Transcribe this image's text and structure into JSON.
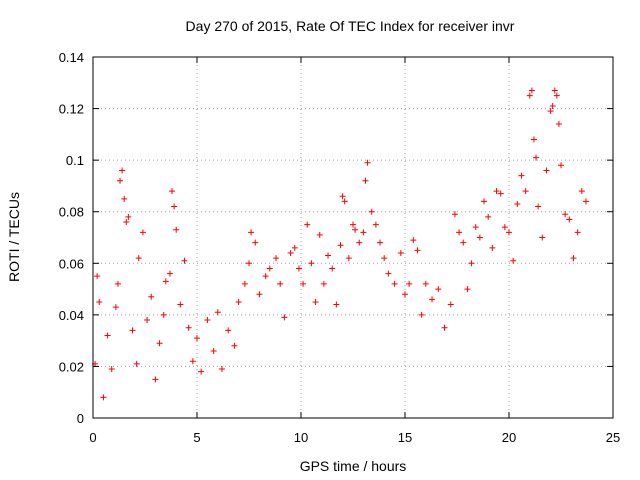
{
  "chart_data": {
    "type": "scatter",
    "title": "Day 270 of 2015, Rate Of TEC Index for receiver invr",
    "xlabel": "GPS time / hours",
    "ylabel": "ROTI / TECUs",
    "xlim": [
      0,
      25
    ],
    "ylim": [
      0,
      0.14
    ],
    "xticks": [
      0,
      5,
      10,
      15,
      20,
      25
    ],
    "xtick_labels": [
      "0",
      "5",
      "10",
      "15",
      "20",
      "25"
    ],
    "yticks": [
      0,
      0.02,
      0.04,
      0.06,
      0.08,
      0.1,
      0.12,
      0.14
    ],
    "ytick_labels": [
      "0",
      "0.02",
      "0.04",
      "0.06",
      "0.08",
      "0.1",
      "0.12",
      "0.14"
    ],
    "grid": true,
    "marker": "plus",
    "series": [
      {
        "name": "ROTI",
        "color": "#ff0000",
        "points": [
          [
            0.1,
            0.021
          ],
          [
            0.2,
            0.055
          ],
          [
            0.3,
            0.045
          ],
          [
            0.5,
            0.008
          ],
          [
            0.7,
            0.032
          ],
          [
            0.9,
            0.019
          ],
          [
            1.1,
            0.043
          ],
          [
            1.2,
            0.052
          ],
          [
            1.3,
            0.092
          ],
          [
            1.4,
            0.096
          ],
          [
            1.5,
            0.085
          ],
          [
            1.6,
            0.076
          ],
          [
            1.7,
            0.078
          ],
          [
            1.9,
            0.034
          ],
          [
            2.1,
            0.021
          ],
          [
            2.2,
            0.062
          ],
          [
            2.4,
            0.072
          ],
          [
            2.6,
            0.038
          ],
          [
            2.8,
            0.047
          ],
          [
            3.0,
            0.015
          ],
          [
            3.2,
            0.029
          ],
          [
            3.4,
            0.04
          ],
          [
            3.5,
            0.053
          ],
          [
            3.7,
            0.056
          ],
          [
            3.8,
            0.088
          ],
          [
            3.9,
            0.082
          ],
          [
            4.0,
            0.073
          ],
          [
            4.2,
            0.044
          ],
          [
            4.4,
            0.061
          ],
          [
            4.6,
            0.035
          ],
          [
            4.8,
            0.022
          ],
          [
            5.0,
            0.031
          ],
          [
            5.2,
            0.018
          ],
          [
            5.5,
            0.038
          ],
          [
            5.8,
            0.026
          ],
          [
            6.0,
            0.041
          ],
          [
            6.2,
            0.019
          ],
          [
            6.5,
            0.034
          ],
          [
            6.8,
            0.028
          ],
          [
            7.0,
            0.045
          ],
          [
            7.3,
            0.052
          ],
          [
            7.5,
            0.06
          ],
          [
            7.6,
            0.072
          ],
          [
            7.8,
            0.068
          ],
          [
            8.0,
            0.048
          ],
          [
            8.3,
            0.055
          ],
          [
            8.5,
            0.058
          ],
          [
            8.8,
            0.062
          ],
          [
            9.0,
            0.052
          ],
          [
            9.2,
            0.039
          ],
          [
            9.5,
            0.064
          ],
          [
            9.7,
            0.066
          ],
          [
            9.9,
            0.058
          ],
          [
            10.1,
            0.052
          ],
          [
            10.3,
            0.075
          ],
          [
            10.5,
            0.06
          ],
          [
            10.7,
            0.045
          ],
          [
            10.9,
            0.071
          ],
          [
            11.1,
            0.052
          ],
          [
            11.3,
            0.063
          ],
          [
            11.5,
            0.058
          ],
          [
            11.7,
            0.044
          ],
          [
            11.9,
            0.067
          ],
          [
            12.0,
            0.086
          ],
          [
            12.1,
            0.084
          ],
          [
            12.3,
            0.062
          ],
          [
            12.5,
            0.075
          ],
          [
            12.6,
            0.073
          ],
          [
            12.8,
            0.068
          ],
          [
            13.0,
            0.072
          ],
          [
            13.1,
            0.092
          ],
          [
            13.2,
            0.099
          ],
          [
            13.4,
            0.08
          ],
          [
            13.6,
            0.075
          ],
          [
            13.8,
            0.068
          ],
          [
            14.0,
            0.062
          ],
          [
            14.2,
            0.056
          ],
          [
            14.5,
            0.052
          ],
          [
            14.8,
            0.064
          ],
          [
            15.0,
            0.048
          ],
          [
            15.2,
            0.052
          ],
          [
            15.4,
            0.069
          ],
          [
            15.6,
            0.065
          ],
          [
            15.8,
            0.04
          ],
          [
            16.0,
            0.052
          ],
          [
            16.3,
            0.046
          ],
          [
            16.6,
            0.05
          ],
          [
            16.9,
            0.035
          ],
          [
            17.2,
            0.044
          ],
          [
            17.4,
            0.079
          ],
          [
            17.6,
            0.072
          ],
          [
            17.8,
            0.068
          ],
          [
            18.0,
            0.05
          ],
          [
            18.2,
            0.06
          ],
          [
            18.4,
            0.074
          ],
          [
            18.6,
            0.07
          ],
          [
            18.8,
            0.084
          ],
          [
            19.0,
            0.078
          ],
          [
            19.2,
            0.066
          ],
          [
            19.4,
            0.088
          ],
          [
            19.6,
            0.087
          ],
          [
            19.8,
            0.074
          ],
          [
            20.0,
            0.072
          ],
          [
            20.2,
            0.061
          ],
          [
            20.4,
            0.083
          ],
          [
            20.6,
            0.094
          ],
          [
            20.8,
            0.088
          ],
          [
            21.0,
            0.125
          ],
          [
            21.1,
            0.127
          ],
          [
            21.2,
            0.108
          ],
          [
            21.3,
            0.101
          ],
          [
            21.4,
            0.082
          ],
          [
            21.6,
            0.07
          ],
          [
            21.8,
            0.096
          ],
          [
            22.0,
            0.119
          ],
          [
            22.1,
            0.121
          ],
          [
            22.2,
            0.127
          ],
          [
            22.3,
            0.125
          ],
          [
            22.4,
            0.114
          ],
          [
            22.5,
            0.098
          ],
          [
            22.7,
            0.079
          ],
          [
            22.9,
            0.077
          ],
          [
            23.1,
            0.062
          ],
          [
            23.3,
            0.072
          ],
          [
            23.5,
            0.088
          ],
          [
            23.7,
            0.084
          ]
        ]
      }
    ]
  }
}
